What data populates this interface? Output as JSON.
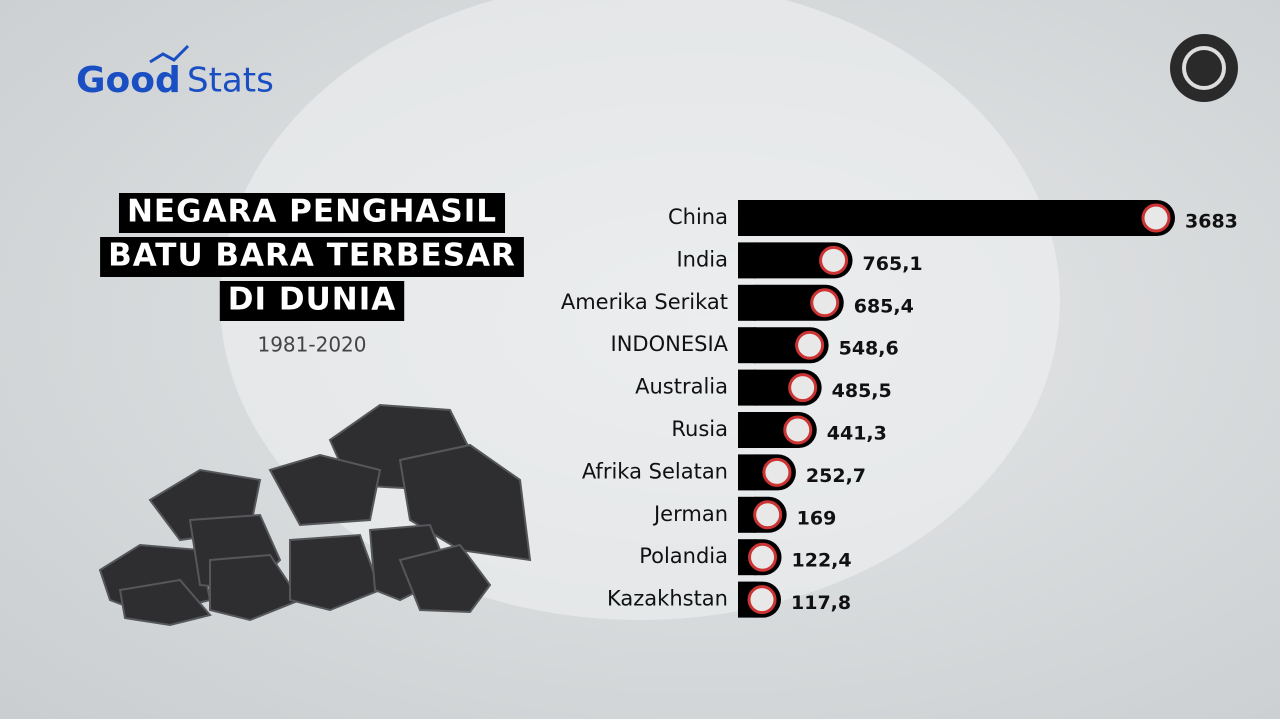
{
  "brand": {
    "part1": "Good",
    "part2": "Stats"
  },
  "chart_data": {
    "type": "hbar",
    "title": [
      "NEGARA PENGHASIL",
      "BATU BARA TERBESAR",
      "DI DUNIA"
    ],
    "subtitle": "1981-2020",
    "categories": [
      "China",
      "India",
      "Amerika Serikat",
      "INDONESIA",
      "Australia",
      "Rusia",
      "Afrika Selatan",
      "Jerman",
      "Polandia",
      "Kazakhstan"
    ],
    "values": [
      3683,
      765.1,
      685.4,
      548.6,
      485.5,
      441.3,
      252.7,
      169,
      122.4,
      117.8
    ],
    "value_labels": [
      "3683",
      "765,1",
      "685,4",
      "548,6",
      "485,5",
      "441,3",
      "252,7",
      "169",
      "122,4",
      "117,8"
    ],
    "color": "#000000"
  }
}
